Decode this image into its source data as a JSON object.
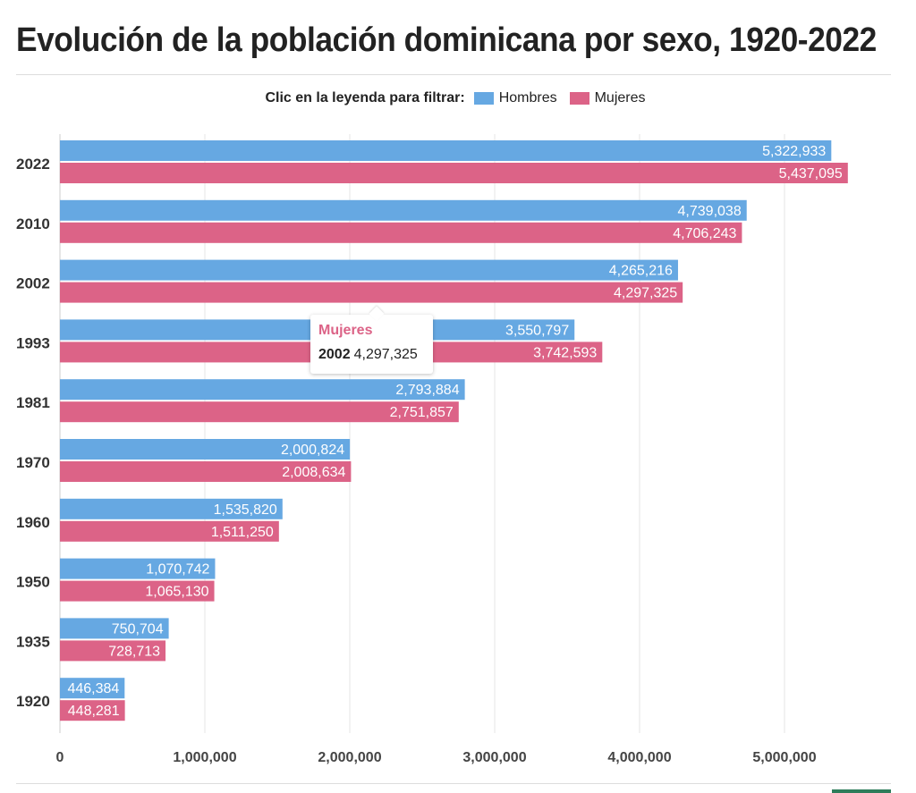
{
  "title": "Evolución de la población dominicana por sexo, 1920-2022",
  "legend": {
    "prompt": "Clic en la leyenda para filtrar:",
    "items": [
      {
        "label": "Hombres",
        "color": "#66a8e2"
      },
      {
        "label": "Mujeres",
        "color": "#dc6387"
      }
    ]
  },
  "tooltip": {
    "series": "Mujeres",
    "year": "2002",
    "value": "4,297,325"
  },
  "chart_data": {
    "type": "bar",
    "orientation": "horizontal",
    "title": "Evolución de la población dominicana por sexo, 1920-2022",
    "categories": [
      "2022",
      "2010",
      "2002",
      "1993",
      "1981",
      "1970",
      "1960",
      "1950",
      "1935",
      "1920"
    ],
    "series": [
      {
        "name": "Hombres",
        "color": "#66a8e2",
        "values": [
          5322933,
          4739038,
          4265216,
          3550797,
          2793884,
          2000824,
          1535820,
          1070742,
          750704,
          446384
        ]
      },
      {
        "name": "Mujeres",
        "color": "#dc6387",
        "values": [
          5437095,
          4706243,
          4297325,
          3742593,
          2751857,
          2008634,
          1511250,
          1065130,
          728713,
          448281
        ]
      }
    ],
    "xlim": [
      0,
      5600000
    ],
    "xticks": [
      0,
      1000000,
      2000000,
      3000000,
      4000000,
      5000000
    ],
    "xtick_labels": [
      "0",
      "1,000,000",
      "2,000,000",
      "3,000,000",
      "4,000,000",
      "5,000,000"
    ],
    "grid": true,
    "legend_position": "top-center",
    "data_labels": "inside-end"
  }
}
